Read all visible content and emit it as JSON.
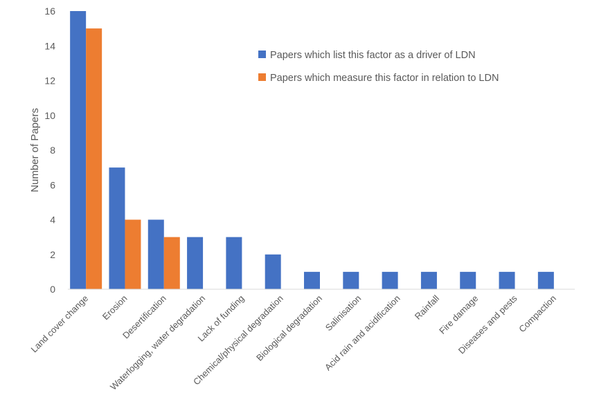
{
  "chart_data": {
    "type": "bar",
    "title": "",
    "xlabel": "",
    "ylabel": "Number of Papers",
    "ylim": [
      0,
      16
    ],
    "yticks": [
      0,
      2,
      4,
      6,
      8,
      10,
      12,
      14,
      16
    ],
    "grid": false,
    "legend_position": "top-right",
    "categories": [
      "Land cover change",
      "Erosion",
      "Desertification",
      "Waterlogging, water degradation",
      "Lack of funding",
      "Chemical/physical degradation",
      "Biological degradation",
      "Salinisation",
      "Acid rain and acidification",
      "Rainfall",
      "Fire damage",
      "Diseases and pests",
      "Compaction"
    ],
    "series": [
      {
        "name": "Papers which list this factor as a driver of LDN",
        "color": "#4472C4",
        "values": [
          16,
          7,
          4,
          3,
          3,
          2,
          1,
          1,
          1,
          1,
          1,
          1,
          1
        ]
      },
      {
        "name": "Papers which measure this factor in relation to LDN",
        "color": "#ED7D31",
        "values": [
          15,
          4,
          3,
          0,
          0,
          0,
          0,
          0,
          0,
          0,
          0,
          0,
          0
        ]
      }
    ]
  }
}
